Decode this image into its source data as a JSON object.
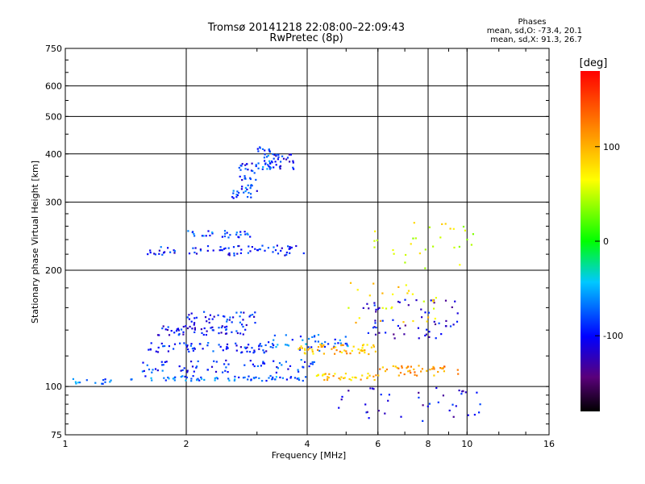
{
  "chart_data": {
    "type": "scatter",
    "title": "Tromsø 20141218 22:08:00–22:09:43",
    "subtitle": "RwPretec (8p)",
    "xlabel": "Frequency [MHz]",
    "ylabel": "Stationary phase Virtual Height [km]",
    "x_scale": "log",
    "y_scale": "log",
    "xlim": [
      1,
      16
    ],
    "ylim": [
      75,
      750
    ],
    "x_ticks": [
      1,
      2,
      4,
      6,
      8,
      10,
      16
    ],
    "y_ticks": [
      75,
      100,
      200,
      300,
      400,
      500,
      600,
      750
    ],
    "grid": true,
    "phases_box": {
      "heading": "Phases",
      "line1": "mean, sd,O: -73.4, 20.1",
      "line2": "mean, sd,X:  91.3, 26.7"
    },
    "colorbar": {
      "label": "[deg]",
      "range": [
        -180,
        180
      ],
      "ticks": [
        100,
        0,
        -100
      ],
      "palette": "rainbow"
    },
    "traces": [
      {
        "f_range": [
          1.0,
          1.3
        ],
        "h": 103,
        "phase": -70,
        "n": 14,
        "h_jitter": 0.02
      },
      {
        "f_range": [
          1.45,
          4.0
        ],
        "h": 105,
        "phase": -75,
        "n": 70,
        "h_jitter": 0.015
      },
      {
        "f_range": [
          1.55,
          4.2
        ],
        "h": 113,
        "phase": -90,
        "n": 70,
        "h_jitter": 0.04
      },
      {
        "f_range": [
          1.6,
          3.3
        ],
        "h": 126,
        "phase": -95,
        "n": 70,
        "h_jitter": 0.03
      },
      {
        "f_range": [
          1.7,
          2.9
        ],
        "h": 140,
        "phase": -100,
        "n": 55,
        "h_jitter": 0.03
      },
      {
        "f_range": [
          2.0,
          3.0
        ],
        "h": 150,
        "phase": -95,
        "n": 40,
        "h_jitter": 0.04
      },
      {
        "f_range": [
          3.2,
          5.2
        ],
        "h": 130,
        "phase": -70,
        "n": 40,
        "h_jitter": 0.05
      },
      {
        "f_range": [
          3.8,
          6.0
        ],
        "h": 125,
        "phase": 95,
        "n": 55,
        "h_jitter": 0.03
      },
      {
        "f_range": [
          4.2,
          6.0
        ],
        "h": 106,
        "phase": 90,
        "n": 35,
        "h_jitter": 0.02
      },
      {
        "f_range": [
          6.0,
          9.5
        ],
        "h": 110,
        "phase": 110,
        "n": 45,
        "h_jitter": 0.03
      },
      {
        "f_range": [
          5.5,
          9.5
        ],
        "h": 150,
        "phase": -110,
        "n": 60,
        "h_jitter": 0.12
      },
      {
        "f_range": [
          5.0,
          8.5
        ],
        "h": 165,
        "phase": 80,
        "n": 30,
        "h_jitter": 0.12
      },
      {
        "f_range": [
          1.6,
          4.0
        ],
        "h": 225,
        "phase": -95,
        "n": 75,
        "h_jitter": 0.03
      },
      {
        "f_range": [
          2.0,
          3.0
        ],
        "h": 248,
        "phase": -80,
        "n": 30,
        "h_jitter": 0.02
      },
      {
        "f_range": [
          2.6,
          3.0
        ],
        "h": 320,
        "phase": -85,
        "n": 25,
        "h_jitter": 0.04
      },
      {
        "f_range": [
          2.7,
          3.0
        ],
        "h": 360,
        "phase": -95,
        "n": 25,
        "h_jitter": 0.05
      },
      {
        "f_range": [
          3.0,
          3.3
        ],
        "h": 390,
        "phase": -80,
        "n": 35,
        "h_jitter": 0.07
      },
      {
        "f_range": [
          3.3,
          3.7
        ],
        "h": 380,
        "phase": -100,
        "n": 25,
        "h_jitter": 0.05
      },
      {
        "f_range": [
          4.5,
          11.0
        ],
        "h": 90,
        "phase": -110,
        "n": 40,
        "h_jitter": 0.1
      },
      {
        "f_range": [
          5.5,
          10.5
        ],
        "h": 230,
        "phase": 60,
        "n": 30,
        "h_jitter": 0.15
      }
    ]
  }
}
